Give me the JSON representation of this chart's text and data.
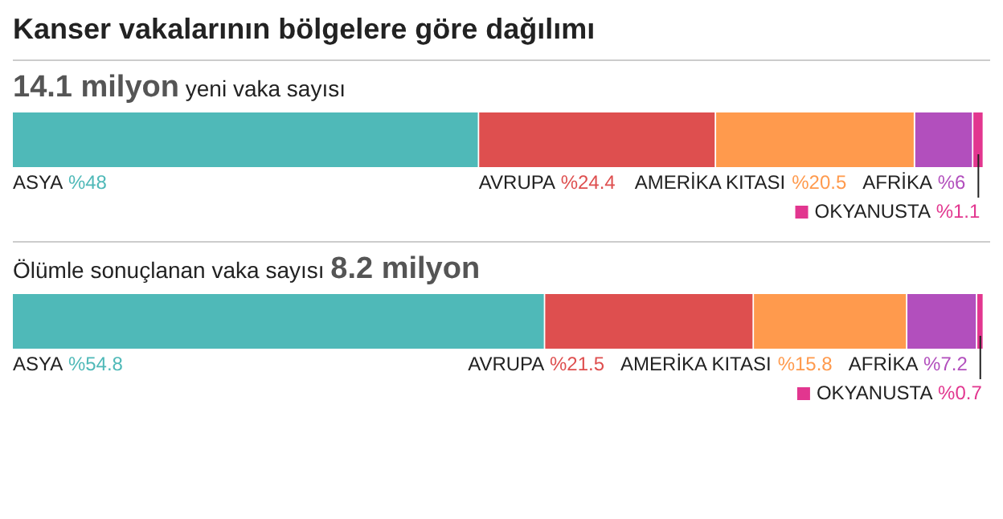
{
  "chart_data": [
    {
      "type": "bar",
      "title": "Kanser vakalarının bölgelere göre dağılımı",
      "subtitle": "14.1 milyon yeni vaka sayısı",
      "orientation": "horizontal",
      "stacked": true,
      "categories": [
        null
      ],
      "xlim": [
        0,
        100
      ],
      "series": [
        {
          "name": "ASYA",
          "color": "#4fb9b8",
          "values": [
            48
          ],
          "value_labels": [
            "%48"
          ]
        },
        {
          "name": "AVRUPA",
          "color": "#de4f4f",
          "values": [
            24.4
          ],
          "value_labels": [
            "%24.4"
          ]
        },
        {
          "name": "AMERİKA KITASI",
          "color": "#ff9a4d",
          "values": [
            20.5
          ],
          "value_labels": [
            "%20.5"
          ]
        },
        {
          "name": "AFRİKA",
          "color": "#b24fbd",
          "values": [
            6
          ],
          "value_labels": [
            "%6"
          ]
        },
        {
          "name": "OKYANUSTA",
          "color": "#e2368f",
          "values": [
            1.1
          ],
          "value_labels": [
            "%1.1"
          ]
        }
      ]
    },
    {
      "type": "bar",
      "subtitle": "Ölümle sonuçlanan vaka sayısı 8.2 milyon",
      "orientation": "horizontal",
      "stacked": true,
      "categories": [
        null
      ],
      "xlim": [
        0,
        100
      ],
      "series": [
        {
          "name": "ASYA",
          "color": "#4fb9b8",
          "values": [
            54.8
          ],
          "value_labels": [
            "%54.8"
          ]
        },
        {
          "name": "AVRUPA",
          "color": "#de4f4f",
          "values": [
            21.5
          ],
          "value_labels": [
            "%21.5"
          ]
        },
        {
          "name": "AMERİKA KITASI",
          "color": "#ff9a4d",
          "values": [
            15.8
          ],
          "value_labels": [
            "%15.8"
          ]
        },
        {
          "name": "AFRİKA",
          "color": "#b24fbd",
          "values": [
            7.2
          ],
          "value_labels": [
            "%7.2"
          ]
        },
        {
          "name": "OKYANUSTA",
          "color": "#e2368f",
          "values": [
            0.7
          ],
          "value_labels": [
            "%0.7"
          ]
        }
      ]
    }
  ]
}
